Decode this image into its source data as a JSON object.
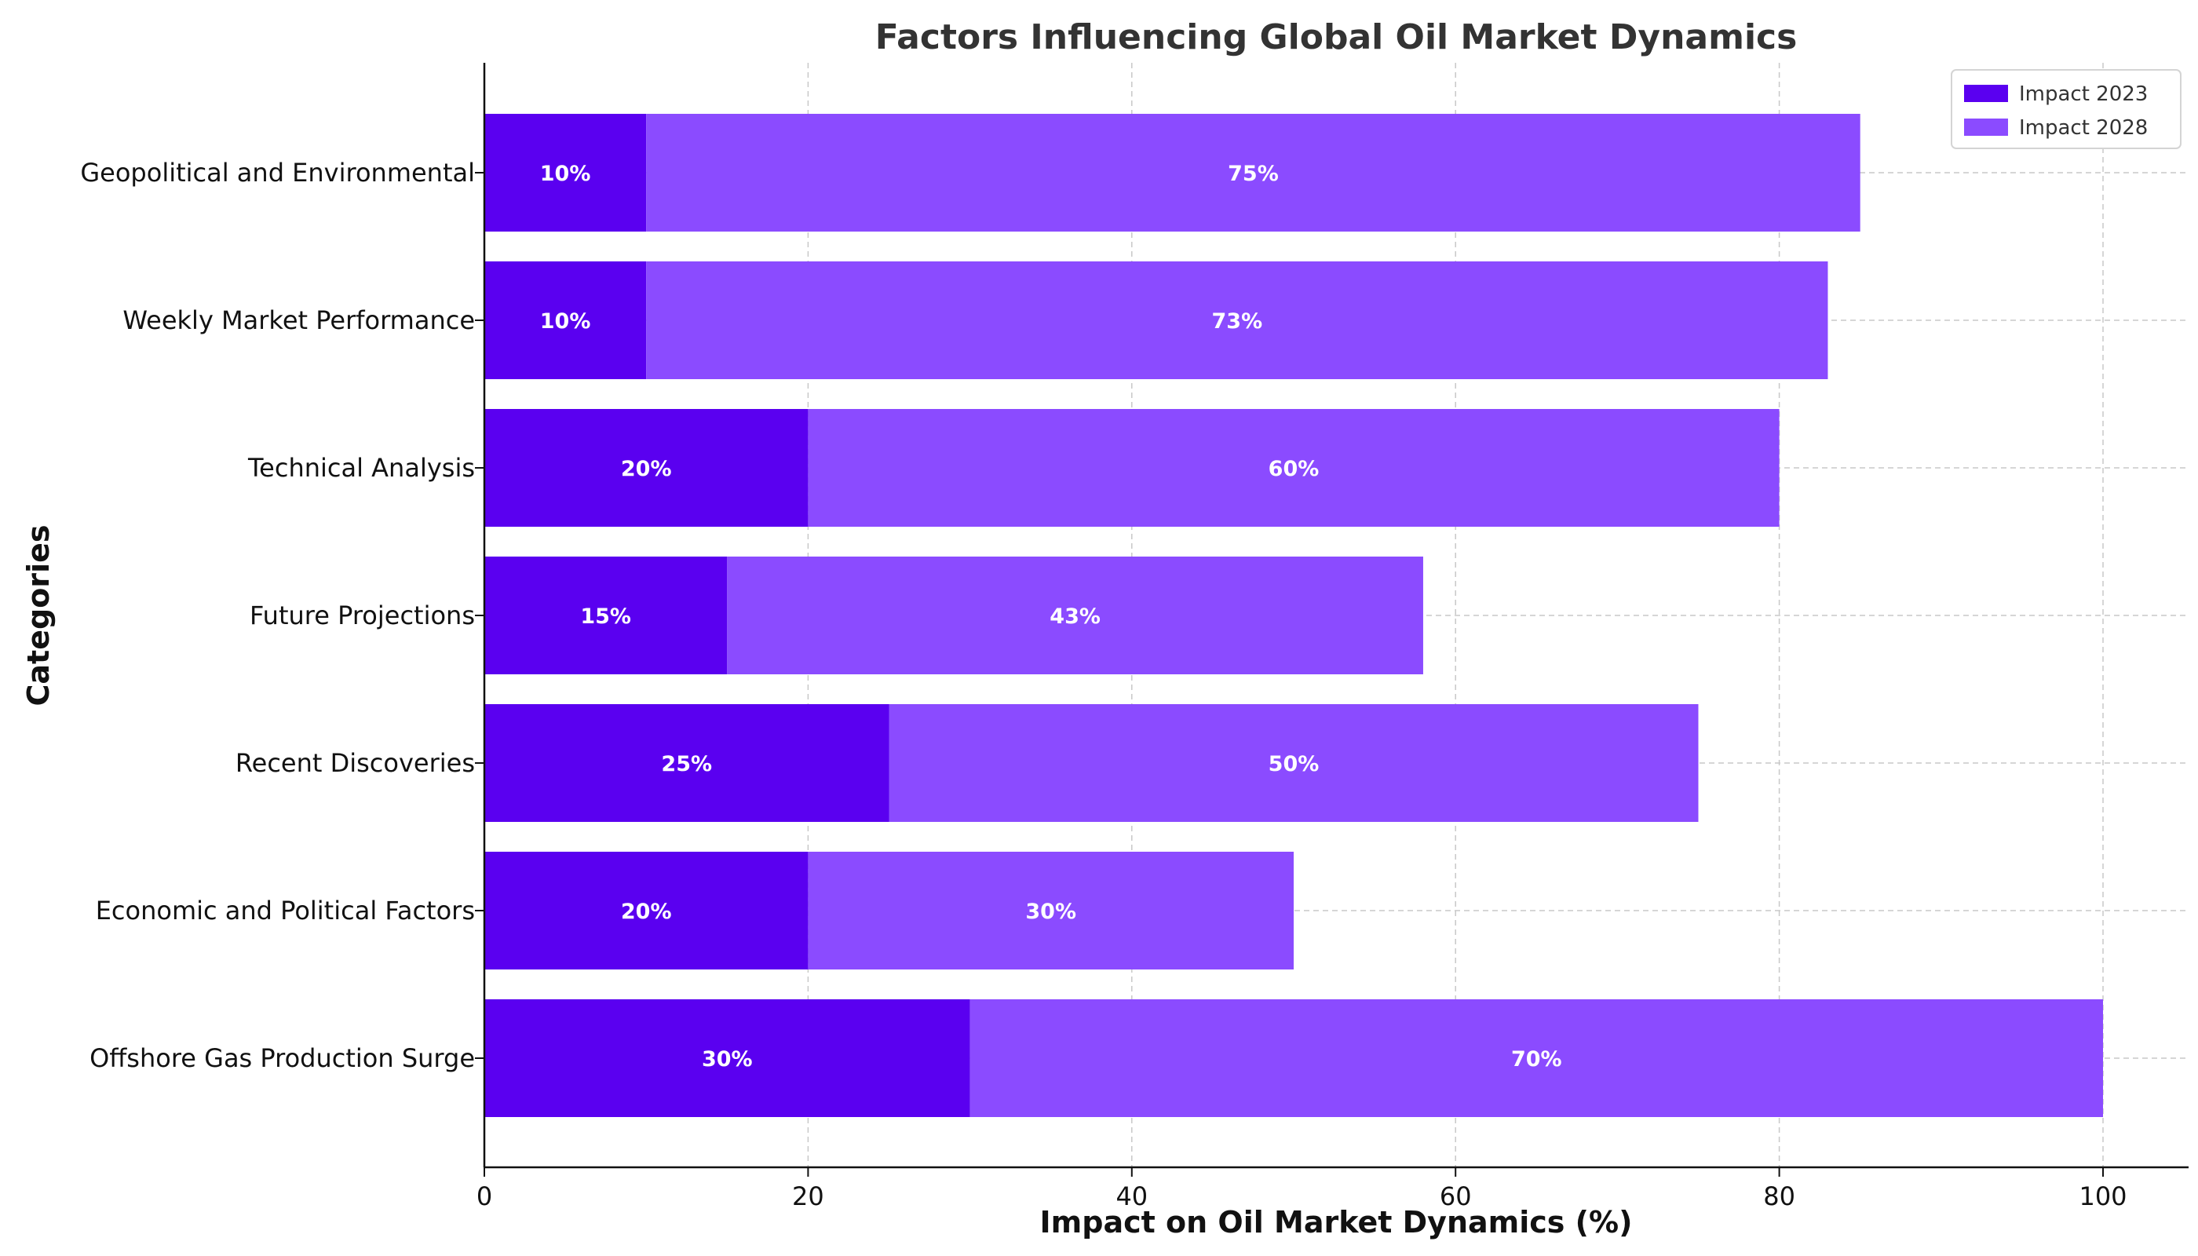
{
  "chart_data": {
    "type": "bar",
    "orientation": "horizontal",
    "stacked": true,
    "title": "Factors Influencing Global Oil Market Dynamics",
    "xlabel": "Impact on Oil Market Dynamics (%)",
    "ylabel": "Categories",
    "xlim": [
      0,
      105
    ],
    "x_ticks": [
      "0",
      "20",
      "40",
      "60",
      "80",
      "100"
    ],
    "grid": true,
    "legend_position": "top-right",
    "categories": [
      "Geopolitical and Environmental",
      "Weekly Market Performance",
      "Technical Analysis",
      "Future Projections",
      "Recent Discoveries",
      "Economic and Political Factors",
      "Offshore Gas Production Surge"
    ],
    "series": [
      {
        "name": "Impact 2023",
        "color": "#5a00f0",
        "values": [
          10,
          10,
          20,
          15,
          25,
          20,
          30
        ],
        "labels": [
          "10%",
          "10%",
          "20%",
          "15%",
          "25%",
          "20%",
          "30%"
        ]
      },
      {
        "name": "Impact 2028",
        "color": "#8b4bff",
        "values": [
          75,
          73,
          60,
          43,
          50,
          30,
          70
        ],
        "labels": [
          "75%",
          "73%",
          "60%",
          "43%",
          "50%",
          "30%",
          "70%"
        ]
      }
    ]
  }
}
